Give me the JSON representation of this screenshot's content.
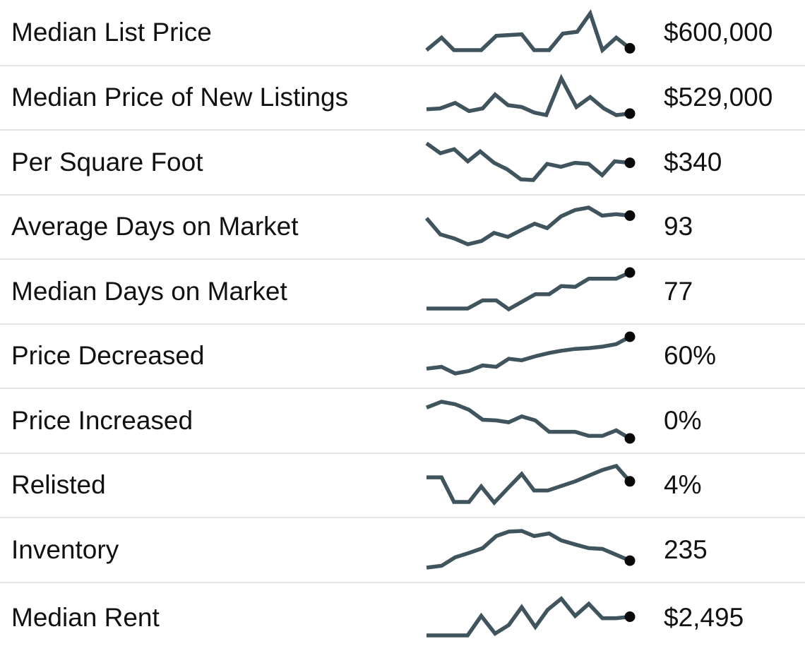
{
  "style": {
    "background": "#ffffff",
    "divider_color": "#e4e4e4",
    "text_color": "#111111",
    "spark_line_color": "#40545d",
    "spark_dot_color": "#0a0a0a"
  },
  "rows": [
    {
      "label": "Median List Price",
      "value": "$600,000"
    },
    {
      "label": "Median Price of New Listings",
      "value": "$529,000"
    },
    {
      "label": "Per Square Foot",
      "value": "$340"
    },
    {
      "label": "Average Days on Market",
      "value": "93"
    },
    {
      "label": "Median Days on Market",
      "value": "77"
    },
    {
      "label": "Price Decreased",
      "value": "60%"
    },
    {
      "label": "Price Increased",
      "value": "0%"
    },
    {
      "label": "Relisted",
      "value": "4%"
    },
    {
      "label": "Inventory",
      "value": "235"
    },
    {
      "label": "Median Rent",
      "value": "$2,495"
    }
  ],
  "chart_data": {
    "type": "line",
    "subtype": "sparkline-table",
    "note": "Unlabeled sparklines; points normalized 0-100 per chart (x left-to-right, y upward). Only the current value is labeled on screen.",
    "series": [
      {
        "name": "Median List Price",
        "current_value": "$600,000",
        "points": [
          [
            0,
            0
          ],
          [
            7.4,
            34
          ],
          [
            13.5,
            0
          ],
          [
            26.9,
            0
          ],
          [
            34.3,
            39
          ],
          [
            46.8,
            43
          ],
          [
            52.9,
            0
          ],
          [
            60.3,
            0
          ],
          [
            67,
            45
          ],
          [
            74.1,
            50
          ],
          [
            80.5,
            100
          ],
          [
            86.5,
            0
          ],
          [
            93.3,
            34
          ],
          [
            100,
            5
          ]
        ]
      },
      {
        "name": "Median Price of New Listings",
        "current_value": "$529,000",
        "points": [
          [
            0,
            16
          ],
          [
            6.7,
            18
          ],
          [
            14.1,
            33
          ],
          [
            20.9,
            11
          ],
          [
            27.6,
            18
          ],
          [
            33.7,
            56
          ],
          [
            40.1,
            27
          ],
          [
            46.8,
            22
          ],
          [
            52.9,
            7
          ],
          [
            58.9,
            0
          ],
          [
            66.3,
            100
          ],
          [
            73.7,
            22
          ],
          [
            80.5,
            49
          ],
          [
            87.2,
            18
          ],
          [
            93.3,
            0
          ],
          [
            100,
            4
          ]
        ]
      },
      {
        "name": "Per Square Foot",
        "current_value": "$340",
        "points": [
          [
            0,
            100
          ],
          [
            6.8,
            73
          ],
          [
            13.6,
            84
          ],
          [
            20.3,
            51
          ],
          [
            26.4,
            78
          ],
          [
            33.2,
            47
          ],
          [
            39.7,
            29
          ],
          [
            46.4,
            2
          ],
          [
            52.5,
            0
          ],
          [
            59.3,
            44
          ],
          [
            66.1,
            36
          ],
          [
            72.9,
            47
          ],
          [
            79.7,
            44
          ],
          [
            86.4,
            13
          ],
          [
            92.5,
            51
          ],
          [
            100,
            47
          ]
        ]
      },
      {
        "name": "Average Days on Market",
        "current_value": "93",
        "points": [
          [
            0,
            71
          ],
          [
            6.8,
            27
          ],
          [
            13.6,
            16
          ],
          [
            20.3,
            0
          ],
          [
            27.1,
            9
          ],
          [
            33.2,
            31
          ],
          [
            40,
            20
          ],
          [
            46.4,
            38
          ],
          [
            53.2,
            56
          ],
          [
            59.3,
            44
          ],
          [
            66.1,
            76
          ],
          [
            72.9,
            93
          ],
          [
            79.7,
            100
          ],
          [
            86.4,
            78
          ],
          [
            93.2,
            82
          ],
          [
            100,
            78
          ]
        ]
      },
      {
        "name": "Median Days on Market",
        "current_value": "77",
        "points": [
          [
            0,
            2
          ],
          [
            20.2,
            2
          ],
          [
            27.6,
            24
          ],
          [
            34.3,
            24
          ],
          [
            40.4,
            0
          ],
          [
            46.8,
            20
          ],
          [
            53.5,
            41
          ],
          [
            60.3,
            41
          ],
          [
            66.3,
            63
          ],
          [
            73.1,
            61
          ],
          [
            79.8,
            83
          ],
          [
            93.3,
            83
          ],
          [
            100,
            100
          ]
        ]
      },
      {
        "name": "Price Decreased",
        "current_value": "60%",
        "points": [
          [
            0,
            13
          ],
          [
            7.4,
            18
          ],
          [
            14.1,
            0
          ],
          [
            20.9,
            7
          ],
          [
            27.6,
            22
          ],
          [
            34.3,
            18
          ],
          [
            40.4,
            40
          ],
          [
            46.8,
            36
          ],
          [
            53.5,
            47
          ],
          [
            60.3,
            56
          ],
          [
            66.3,
            62
          ],
          [
            73.1,
            67
          ],
          [
            79.8,
            69
          ],
          [
            86.5,
            73
          ],
          [
            93.3,
            80
          ],
          [
            100,
            100
          ]
        ]
      },
      {
        "name": "Price Increased",
        "current_value": "0%",
        "points": [
          [
            0,
            84
          ],
          [
            7.4,
            100
          ],
          [
            14.1,
            93
          ],
          [
            20.9,
            78
          ],
          [
            27.6,
            51
          ],
          [
            34.3,
            49
          ],
          [
            40.4,
            44
          ],
          [
            46.8,
            60
          ],
          [
            53.5,
            49
          ],
          [
            60.3,
            18
          ],
          [
            66.3,
            18
          ],
          [
            73.1,
            18
          ],
          [
            79.8,
            7
          ],
          [
            86.5,
            7
          ],
          [
            93.3,
            22
          ],
          [
            100,
            0
          ]
        ]
      },
      {
        "name": "Relisted",
        "current_value": "4%",
        "points": [
          [
            0,
            69
          ],
          [
            7.4,
            69
          ],
          [
            13.5,
            2
          ],
          [
            20.9,
            2
          ],
          [
            26.9,
            44
          ],
          [
            33.3,
            0
          ],
          [
            40.1,
            40
          ],
          [
            46.8,
            78
          ],
          [
            52.9,
            33
          ],
          [
            59.6,
            33
          ],
          [
            73.1,
            58
          ],
          [
            86.5,
            89
          ],
          [
            93.3,
            100
          ],
          [
            100,
            58
          ]
        ]
      },
      {
        "name": "Inventory",
        "current_value": "235",
        "points": [
          [
            0,
            0
          ],
          [
            7.4,
            5
          ],
          [
            14.1,
            28
          ],
          [
            20.9,
            40
          ],
          [
            27.6,
            53
          ],
          [
            34.3,
            86
          ],
          [
            40.4,
            98
          ],
          [
            46.8,
            100
          ],
          [
            52.9,
            86
          ],
          [
            60.3,
            93
          ],
          [
            66.3,
            74
          ],
          [
            73.1,
            63
          ],
          [
            79.8,
            53
          ],
          [
            86.5,
            51
          ],
          [
            93.3,
            35
          ],
          [
            100,
            19
          ]
        ]
      },
      {
        "name": "Median Rent",
        "current_value": "$2,495",
        "points": [
          [
            0,
            0
          ],
          [
            20.2,
            0
          ],
          [
            26.9,
            53
          ],
          [
            33.7,
            5
          ],
          [
            40.4,
            28
          ],
          [
            46.8,
            77
          ],
          [
            53.5,
            23
          ],
          [
            59.6,
            70
          ],
          [
            66.3,
            100
          ],
          [
            73.1,
            53
          ],
          [
            79.8,
            86
          ],
          [
            86.5,
            47
          ],
          [
            93.3,
            47
          ],
          [
            100,
            51
          ]
        ]
      }
    ]
  }
}
